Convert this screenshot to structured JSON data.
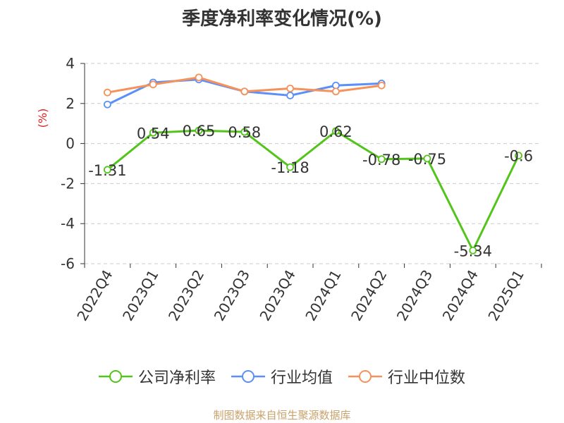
{
  "chart_data": {
    "type": "line",
    "title": "季度净利率变化情况(%)",
    "ylabel": "(%)",
    "xlabel": "",
    "ylim": [
      -6,
      4
    ],
    "yticks": [
      4,
      2,
      0,
      -2,
      -4,
      -6
    ],
    "categories": [
      "2022Q4",
      "2023Q1",
      "2023Q2",
      "2023Q3",
      "2023Q4",
      "2024Q1",
      "2024Q2",
      "2024Q3",
      "2024Q4",
      "2025Q1"
    ],
    "grid": true,
    "legend": "bottom",
    "series": [
      {
        "name": "公司净利率",
        "color": "#52c41a",
        "values": [
          -1.31,
          0.54,
          0.65,
          0.58,
          -1.18,
          0.62,
          -0.78,
          -0.75,
          -5.34,
          -0.6
        ],
        "labels": [
          "-1.31",
          "0.54",
          "0.65",
          "0.58",
          "-1.18",
          "0.62",
          "-0.78",
          "-0.75",
          "-5.34",
          "-0.6"
        ]
      },
      {
        "name": "行业均值",
        "color": "#5b8ff9",
        "values": [
          1.95,
          3.05,
          3.2,
          2.6,
          2.4,
          2.9,
          3.0,
          null,
          null,
          null
        ]
      },
      {
        "name": "行业中位数",
        "color": "#f6915a",
        "values": [
          2.55,
          2.95,
          3.3,
          2.6,
          2.75,
          2.6,
          2.9,
          null,
          null,
          null
        ]
      }
    ]
  },
  "source": "制图数据来自恒生聚源数据库"
}
